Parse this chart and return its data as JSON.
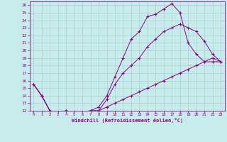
{
  "xlabel": "Windchill (Refroidissement éolien,°C)",
  "xlim": [
    -0.5,
    23.5
  ],
  "ylim": [
    12,
    26.5
  ],
  "xticks": [
    0,
    1,
    2,
    3,
    4,
    5,
    6,
    7,
    8,
    9,
    10,
    11,
    12,
    13,
    14,
    15,
    16,
    17,
    18,
    19,
    20,
    21,
    22,
    23
  ],
  "yticks": [
    12,
    13,
    14,
    15,
    16,
    17,
    18,
    19,
    20,
    21,
    22,
    23,
    24,
    25,
    26
  ],
  "bg_color": "#c8ecec",
  "grid_color": "#a8d0d0",
  "line_color": "#880088",
  "line1_x": [
    0,
    1,
    2,
    3,
    4,
    5,
    6,
    7,
    8,
    9,
    10,
    11,
    12,
    13,
    14,
    15,
    16,
    17,
    18,
    19,
    20,
    21,
    22,
    23
  ],
  "line1_y": [
    15.5,
    14.0,
    12.0,
    11.8,
    12.0,
    11.8,
    11.8,
    12.0,
    12.5,
    14.0,
    16.5,
    19.0,
    21.5,
    22.5,
    24.5,
    24.8,
    25.5,
    26.2,
    25.0,
    21.0,
    19.5,
    18.5,
    19.0,
    18.5
  ],
  "line2_x": [
    0,
    1,
    2,
    3,
    4,
    5,
    6,
    7,
    8,
    9,
    10,
    11,
    12,
    13,
    14,
    15,
    16,
    17,
    18,
    19,
    20,
    21,
    22,
    23
  ],
  "line2_y": [
    15.5,
    14.0,
    12.0,
    11.8,
    12.0,
    11.8,
    11.8,
    12.0,
    12.0,
    13.5,
    15.5,
    17.0,
    18.0,
    19.0,
    20.5,
    21.5,
    22.5,
    23.0,
    23.5,
    23.0,
    22.5,
    21.2,
    19.5,
    18.5
  ],
  "line3_x": [
    0,
    1,
    2,
    3,
    4,
    5,
    6,
    7,
    8,
    9,
    10,
    11,
    12,
    13,
    14,
    15,
    16,
    17,
    18,
    19,
    20,
    21,
    22,
    23
  ],
  "line3_y": [
    15.5,
    14.0,
    12.0,
    11.8,
    12.0,
    11.8,
    11.8,
    12.0,
    12.0,
    12.5,
    13.0,
    13.5,
    14.0,
    14.5,
    15.0,
    15.5,
    16.0,
    16.5,
    17.0,
    17.5,
    18.0,
    18.5,
    18.5,
    18.5
  ]
}
